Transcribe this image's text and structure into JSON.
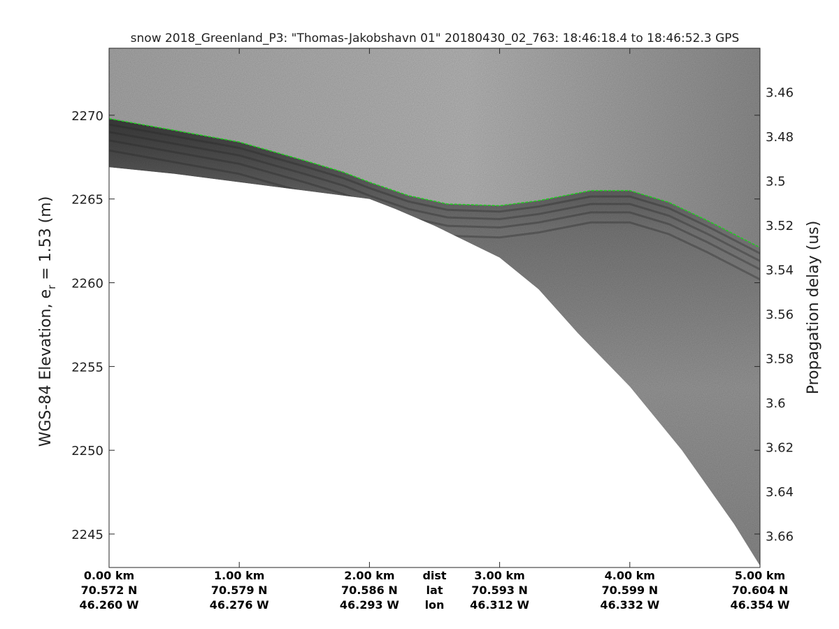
{
  "chart_data": {
    "type": "heatmap",
    "title": "snow 2018_Greenland_P3: \"Thomas-Jakobshavn 01\"  20180430_02_763: 18:46:18.4 to 18:46:52.3 GPS",
    "ylabel_main": "WGS-84 Elevation, e",
    "ylabel_sub": "r",
    "ylabel_tail": " = 1.53 (m)",
    "y2label": "Propagation delay (us)",
    "ylim": [
      2243,
      2274
    ],
    "y_ticks": [
      2245,
      2250,
      2255,
      2260,
      2265,
      2270
    ],
    "y_tick_labels": [
      "2245",
      "2250",
      "2255",
      "2260",
      "2265",
      "2270"
    ],
    "y2_ticks": [
      3.46,
      3.48,
      3.5,
      3.52,
      3.54,
      3.56,
      3.58,
      3.6,
      3.62,
      3.64,
      3.66
    ],
    "y2_tick_labels": [
      "3.46",
      "3.48",
      "3.5",
      "3.52",
      "3.54",
      "3.56",
      "3.58",
      "3.6",
      "3.62",
      "3.64",
      "3.66"
    ],
    "y2_elev_map": {
      "delay_us": [
        3.46,
        3.66
      ],
      "elev_m": [
        2271.4,
        2244.9
      ]
    },
    "xlim": [
      0,
      5
    ],
    "x_ticks": [
      0,
      1,
      2,
      3,
      4,
      5
    ],
    "x_labels_dist": [
      "0.00 km",
      "1.00 km",
      "2.00 km",
      "3.00 km",
      "4.00 km",
      "5.00 km"
    ],
    "x_labels_lat": [
      "70.572 N",
      "70.579 N",
      "70.586 N",
      "70.593 N",
      "70.599 N",
      "70.604 N"
    ],
    "x_labels_lon": [
      "46.260 W",
      "46.276 W",
      "46.293 W",
      "46.312 W",
      "46.332 W",
      "46.354 W"
    ],
    "row_labels": [
      "dist",
      "lat",
      "lon"
    ],
    "surface_elevation_m": {
      "x": [
        0,
        0.5,
        1.0,
        1.5,
        1.8,
        2.0,
        2.3,
        2.6,
        3.0,
        3.3,
        3.7,
        4.0,
        4.3,
        4.6,
        5.0
      ],
      "y": [
        2269.8,
        2269.1,
        2268.4,
        2267.3,
        2266.6,
        2266.0,
        2265.2,
        2264.7,
        2264.6,
        2264.9,
        2265.5,
        2265.5,
        2264.8,
        2263.7,
        2262.1
      ]
    },
    "data_floor_elevation_m": {
      "x": [
        0,
        0.5,
        1.0,
        1.5,
        2.0,
        2.2,
        2.5,
        3.0,
        3.3,
        3.6,
        4.0,
        4.4,
        4.8,
        5.0
      ],
      "y": [
        2266.9,
        2266.5,
        2266.0,
        2265.5,
        2265.0,
        2264.4,
        2263.4,
        2261.5,
        2259.6,
        2257.0,
        2253.8,
        2250.0,
        2245.6,
        2243.1
      ]
    },
    "colors": {
      "surface_line": "#22cc22",
      "radargram": "grayscale"
    }
  }
}
